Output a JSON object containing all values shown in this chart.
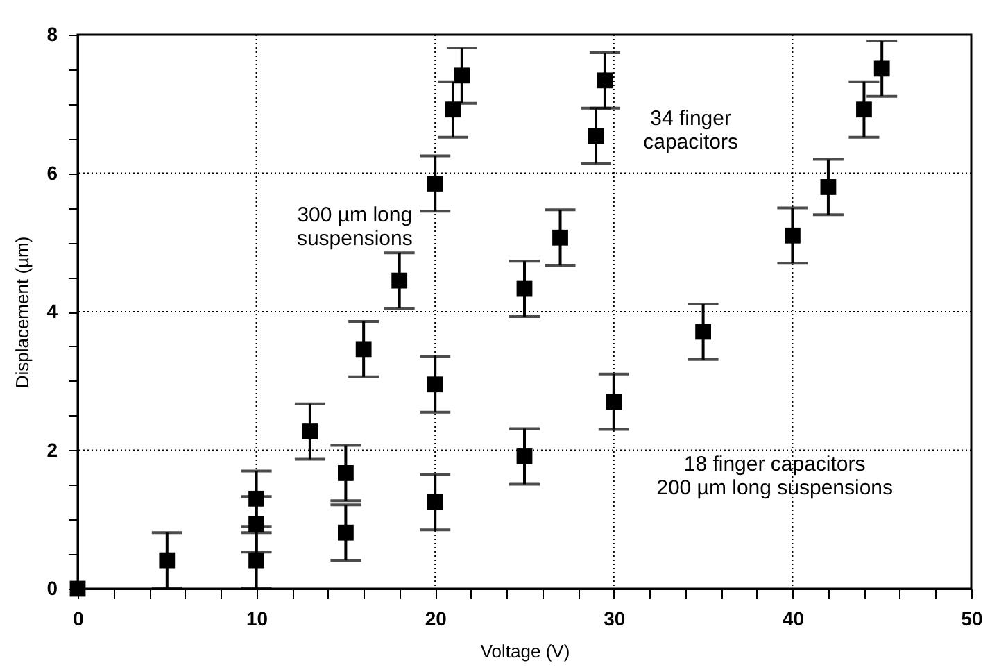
{
  "chart_data": {
    "type": "scatter",
    "xlabel": "Voltage  (V)",
    "ylabel": "Displacement  (µm)",
    "xlim": [
      0,
      50
    ],
    "ylim": [
      0,
      8
    ],
    "xticks": [
      0,
      {
        "value": 2,
        "label": null
      },
      {
        "value": 4,
        "label": null
      },
      {
        "value": 6,
        "label": null
      },
      {
        "value": 8,
        "label": null
      },
      10,
      {
        "value": 12,
        "label": null
      },
      {
        "value": 14,
        "label": null
      },
      {
        "value": 16,
        "label": null
      },
      {
        "value": 18,
        "label": null
      },
      20,
      {
        "value": 22,
        "label": null
      },
      {
        "value": 24,
        "label": null
      },
      {
        "value": 26,
        "label": null
      },
      {
        "value": 28,
        "label": null
      },
      30,
      {
        "value": 32,
        "label": null
      },
      {
        "value": 34,
        "label": null
      },
      {
        "value": 36,
        "label": null
      },
      {
        "value": 38,
        "label": null
      },
      40,
      {
        "value": 42,
        "label": null
      },
      {
        "value": 44,
        "label": null
      },
      {
        "value": 46,
        "label": null
      },
      {
        "value": 48,
        "label": null
      },
      50
    ],
    "yticks": [
      0,
      {
        "value": 0.5,
        "label": null
      },
      {
        "value": 1,
        "label": null
      },
      {
        "value": 1.5,
        "label": null
      },
      2,
      {
        "value": 2.5,
        "label": null
      },
      {
        "value": 3,
        "label": null
      },
      {
        "value": 3.5,
        "label": null
      },
      4,
      {
        "value": 4.5,
        "label": null
      },
      {
        "value": 5,
        "label": null
      },
      {
        "value": 5.5,
        "label": null
      },
      6,
      {
        "value": 6.5,
        "label": null
      },
      {
        "value": 7,
        "label": null
      },
      {
        "value": 7.5,
        "label": null
      },
      8
    ],
    "grid": true,
    "marker": "square",
    "series": [
      {
        "color": "#000000",
        "x": [
          10,
          13,
          16,
          18,
          20,
          21,
          21.5
        ],
        "values": [
          1.3,
          2.27,
          3.46,
          4.45,
          5.85,
          6.92,
          7.41
        ],
        "errors": [
          0.4,
          0.4,
          0.4,
          0.4,
          0.4,
          0.4,
          0.4
        ]
      },
      {
        "color": "#000000",
        "x": [
          0,
          5,
          10,
          15,
          20,
          25,
          27,
          29,
          29.5
        ],
        "values": [
          0,
          0.41,
          0.93,
          1.67,
          2.95,
          4.33,
          5.07,
          6.54,
          7.34
        ],
        "errors": [
          null,
          0.4,
          0.4,
          0.4,
          0.4,
          0.4,
          0.4,
          0.4,
          0.4
        ]
      },
      {
        "color": "#000000",
        "x": [
          10,
          15,
          20,
          25,
          30,
          35,
          40,
          42,
          44,
          45
        ],
        "values": [
          0.41,
          0.81,
          1.25,
          1.91,
          2.7,
          3.71,
          5.1,
          5.8,
          6.92,
          7.51
        ],
        "errors": [
          0.4,
          0.4,
          0.4,
          0.4,
          0.4,
          0.4,
          0.4,
          0.4,
          0.4,
          0.4
        ]
      }
    ],
    "annotations": [
      "300 µm long\nsuspensions",
      "34  finger\ncapacitors",
      "18  finger  capacitors\n200 µm long suspensions"
    ]
  }
}
